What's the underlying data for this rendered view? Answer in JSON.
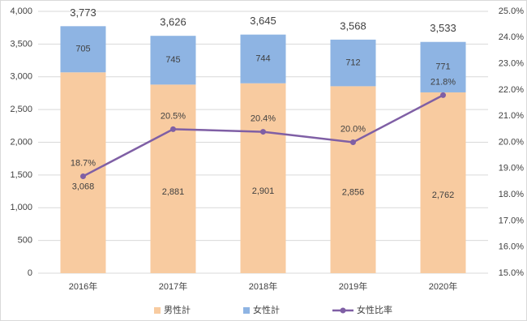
{
  "chart_data": {
    "type": "bar",
    "stacked": true,
    "categories": [
      "2016年",
      "2017年",
      "2018年",
      "2019年",
      "2020年"
    ],
    "series": [
      {
        "name": "男性計",
        "color": "#f8cba0",
        "values": [
          3068,
          2881,
          2901,
          2856,
          2762
        ],
        "value_labels": [
          "3,068",
          "2,881",
          "2,901",
          "2,856",
          "2,762"
        ]
      },
      {
        "name": "女性計",
        "color": "#8eb4e3",
        "values": [
          705,
          745,
          744,
          712,
          771
        ]
      },
      {
        "name": "女性比率",
        "type": "line",
        "axis": "y2",
        "color": "#7f5fa5",
        "values": [
          18.7,
          20.5,
          20.4,
          20.0,
          21.8
        ],
        "value_labels": [
          "18.7%",
          "20.5%",
          "20.4%",
          "20.0%",
          "21.8%"
        ]
      }
    ],
    "totals": {
      "values": [
        3773,
        3626,
        3645,
        3568,
        3533
      ],
      "value_labels": [
        "3,773",
        "3,626",
        "3,645",
        "3,568",
        "3,533"
      ]
    },
    "ylim": [
      0,
      4000
    ],
    "yticks": [
      0,
      500,
      {
        "value": 1000,
        "label": "1,000"
      },
      {
        "value": 1500,
        "label": "1,500"
      },
      {
        "value": 2000,
        "label": "2,000"
      },
      {
        "value": 2500,
        "label": "2,500"
      },
      {
        "value": 3000,
        "label": "3,000"
      },
      {
        "value": 3500,
        "label": "3,500"
      },
      {
        "value": 4000,
        "label": "4,000"
      }
    ],
    "y2lim": [
      15,
      25
    ],
    "y2ticks": [
      {
        "value": 15,
        "label": "15.0%"
      },
      {
        "value": 16,
        "label": "16.0%"
      },
      {
        "value": 17,
        "label": "17.0%"
      },
      {
        "value": 18,
        "label": "18.0%"
      },
      {
        "value": 19,
        "label": "19.0%"
      },
      {
        "value": 20,
        "label": "20.0%"
      },
      {
        "value": 21,
        "label": "21.0%"
      },
      {
        "value": 22,
        "label": "22.0%"
      },
      {
        "value": 23,
        "label": "23.0%"
      },
      {
        "value": 24,
        "label": "24.0%"
      },
      {
        "value": 25,
        "label": "25.0%"
      }
    ],
    "grid": true,
    "legend": "bottom"
  }
}
